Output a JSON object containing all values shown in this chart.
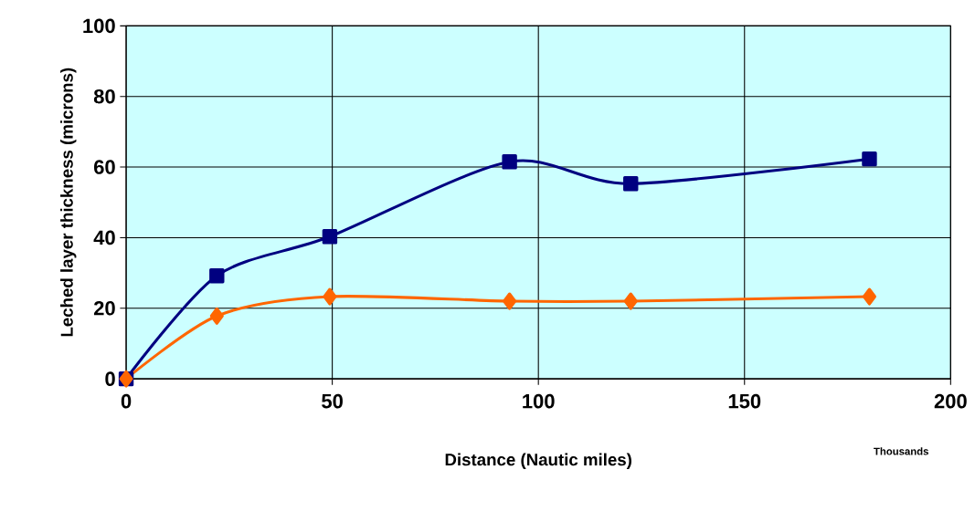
{
  "chart_data": {
    "type": "line",
    "xlabel": "Distance (Nautic miles)",
    "ylabel": "Leched layer thickness (microns)",
    "annotations": [
      "Thousands"
    ],
    "xlim": [
      0,
      200
    ],
    "xticks": [
      0,
      50,
      100,
      150,
      200
    ],
    "ylim": [
      0,
      100
    ],
    "yticks": [
      0,
      20,
      40,
      60,
      80,
      100
    ],
    "grid": true,
    "series": [
      {
        "color": "#000080",
        "marker": "square",
        "x": [
          0,
          22,
          49.4,
          93,
          122.4,
          180.3
        ],
        "values": [
          0,
          29.2,
          40.3,
          61.5,
          55.3,
          62.3
        ]
      },
      {
        "color": "#ff6600",
        "marker": "diamond",
        "x": [
          0,
          22,
          49.4,
          93,
          122.4,
          180.3
        ],
        "values": [
          0,
          17.8,
          23.3,
          22,
          22,
          23.3
        ]
      }
    ]
  }
}
